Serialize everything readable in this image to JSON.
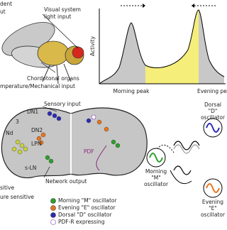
{
  "fly": {
    "labels": [
      "dent",
      "ut",
      "Visual system",
      "light input",
      "Chordotonal organs",
      "mperature/Mechanical input"
    ]
  },
  "activity": {
    "axis_label": "Activity",
    "peaks": [
      "Morning peak",
      "Evening pea"
    ]
  },
  "brain": {
    "labels": [
      "Sensory input",
      "DN1",
      "3",
      "Nd",
      "DN2",
      "LPN",
      "s-LN",
      "PDF",
      "Network output",
      "sitive",
      "ure sensitive"
    ]
  },
  "legend": {
    "items": [
      {
        "label": "Morning \"M\" oscillator",
        "color": "#2ca02c"
      },
      {
        "label": "Evening \"E\" oscillator",
        "color": "#e8741c"
      },
      {
        "label": "Dorsal \"D\" oscillator",
        "color": "#2b2bb8"
      },
      {
        "label": "PDF-R expressing",
        "color": "#ffffff"
      }
    ]
  },
  "oscillators": [
    {
      "line1": "Dorsal",
      "line2": "\"D\"",
      "line3": "oscillator"
    },
    {
      "line1": "Morning",
      "line2": "\"M\"",
      "line3": "oscillator"
    },
    {
      "line1": "Evening",
      "line2": "\"E\"",
      "line3": "oscillator"
    }
  ]
}
